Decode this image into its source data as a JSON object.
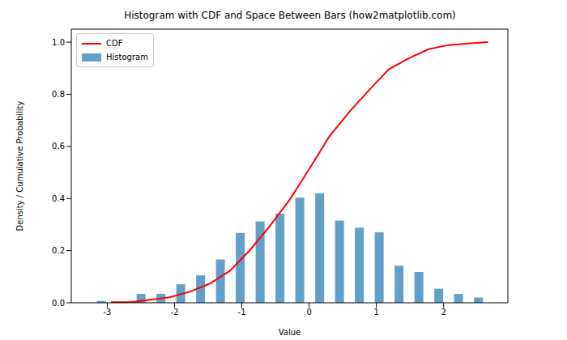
{
  "chart_data": {
    "type": "histogram",
    "title": "Histogram with CDF and Space Between Bars (how2matplotlib.com)",
    "x_label": "Value",
    "y_label": "Density / Cumulative Probability",
    "legend": "upper left",
    "grid": false,
    "xlim": [
      -3.535,
      2.955
    ],
    "xticks": [
      -3,
      -2,
      -1,
      0,
      1,
      2
    ],
    "ylim": [
      0,
      1.05
    ],
    "yticks": [
      {
        "value": 0,
        "label": "0.0"
      },
      0.2,
      0.4,
      0.6,
      0.8,
      {
        "value": 1,
        "label": "1.0"
      }
    ],
    "series": [
      {
        "name": "CDF",
        "type": "line",
        "color": "#ff0000",
        "x": [
          -2.945,
          -2.65,
          -2.355,
          -2.06,
          -1.765,
          -1.47,
          -1.175,
          -0.88,
          -0.585,
          -0.29,
          0.005,
          0.3,
          0.595,
          0.89,
          1.185,
          1.48,
          1.775,
          2.07,
          2.365,
          2.66
        ],
        "values": [
          0.002,
          0.002,
          0.012,
          0.022,
          0.043,
          0.074,
          0.123,
          0.202,
          0.294,
          0.395,
          0.514,
          0.638,
          0.731,
          0.816,
          0.896,
          0.938,
          0.973,
          0.989,
          0.995,
          1.0
        ]
      },
      {
        "name": "Histogram",
        "type": "bar",
        "color": "#1f77b4",
        "bins": [
          -3.24,
          -2.945,
          -2.65,
          -2.355,
          -2.06,
          -1.765,
          -1.47,
          -1.175,
          -0.88,
          -0.585,
          -0.29,
          0.005,
          0.3,
          0.595,
          0.89,
          1.185,
          1.48,
          1.775,
          2.07,
          2.365,
          2.66
        ],
        "values": [
          0.007,
          0,
          0.034,
          0.034,
          0.071,
          0.105,
          0.166,
          0.268,
          0.312,
          0.342,
          0.403,
          0.42,
          0.315,
          0.288,
          0.27,
          0.142,
          0.118,
          0.054,
          0.034,
          0.02
        ]
      }
    ]
  }
}
